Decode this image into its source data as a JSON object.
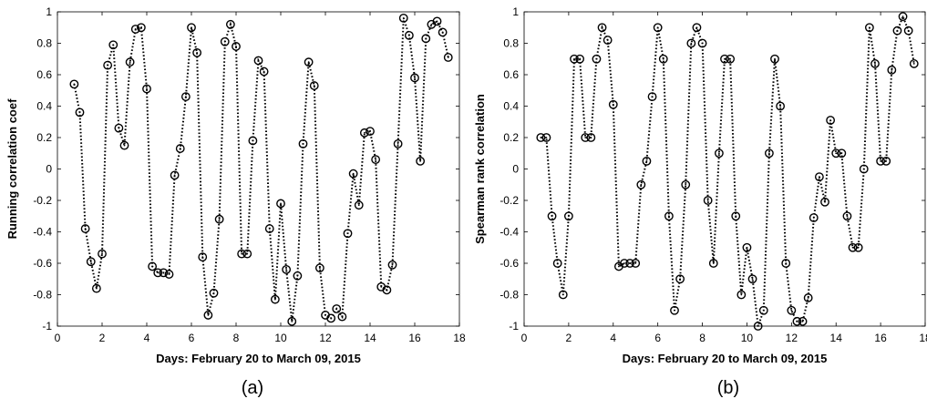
{
  "chart_data": [
    {
      "type": "line",
      "panel_label": "(a)",
      "ylabel": "Running correlation coef",
      "xlabel": "Days: February 20 to March 09, 2015",
      "xlim": [
        0,
        18
      ],
      "ylim": [
        -1,
        1
      ],
      "xticks": [
        "0",
        "2",
        "4",
        "6",
        "8",
        "10",
        "12",
        "14",
        "16",
        "18"
      ],
      "yticks": [
        "1",
        "0.8",
        "0.6",
        "0.4",
        "0.2",
        "0",
        "-0.2",
        "-0.4",
        "-0.6",
        "-0.8",
        "-1"
      ],
      "grid": false,
      "line_style": "dotted",
      "marker": "circle",
      "series": [
        {
          "x": [
            0.75,
            1.0,
            1.25,
            1.5,
            1.75,
            2.0,
            2.25,
            2.5,
            2.75,
            3.0,
            3.25,
            3.5,
            3.75,
            4.0,
            4.25,
            4.5,
            4.75,
            5.0,
            5.25,
            5.5,
            5.75,
            6.0,
            6.25,
            6.5,
            6.75,
            7.0,
            7.25,
            7.5,
            7.75,
            8.0,
            8.25,
            8.5,
            8.75,
            9.0,
            9.25,
            9.5,
            9.75,
            10.0,
            10.25,
            10.5,
            10.75,
            11.0,
            11.25,
            11.5,
            11.75,
            12.0,
            12.25,
            12.5,
            12.75,
            13.0,
            13.25,
            13.5,
            13.75,
            14.0,
            14.25,
            14.5,
            14.75,
            15.0,
            15.25,
            15.5,
            15.75,
            16.0,
            16.25,
            16.5,
            16.75,
            17.0,
            17.25,
            17.5
          ],
          "y": [
            0.54,
            0.36,
            -0.38,
            -0.59,
            -0.76,
            -0.54,
            0.66,
            0.79,
            0.26,
            0.15,
            0.68,
            0.89,
            0.9,
            0.51,
            -0.62,
            -0.66,
            -0.66,
            -0.67,
            -0.04,
            0.13,
            0.46,
            0.9,
            0.74,
            -0.56,
            -0.93,
            -0.79,
            -0.32,
            0.81,
            0.92,
            0.78,
            -0.54,
            -0.54,
            0.18,
            0.69,
            0.62,
            -0.38,
            -0.83,
            -0.22,
            -0.64,
            -0.97,
            -0.68,
            0.16,
            0.68,
            0.53,
            -0.63,
            -0.93,
            -0.95,
            -0.89,
            -0.94,
            -0.41,
            -0.03,
            -0.23,
            0.23,
            0.24,
            0.06,
            -0.75,
            -0.77,
            -0.61,
            0.16,
            0.96,
            0.85,
            0.58,
            0.05,
            0.83,
            0.92,
            0.94,
            0.87,
            0.71
          ]
        }
      ]
    },
    {
      "type": "line",
      "panel_label": "(b)",
      "ylabel": "Spearman rank correlation",
      "xlabel": "Days: February 20 to March 09, 2015",
      "xlim": [
        0,
        18
      ],
      "ylim": [
        -1,
        1
      ],
      "xticks": [
        "0",
        "2",
        "4",
        "6",
        "8",
        "10",
        "12",
        "14",
        "16",
        "18"
      ],
      "yticks": [
        "1",
        "0.8",
        "0.6",
        "0.4",
        "0.2",
        "0",
        "-0.2",
        "-0.4",
        "-0.6",
        "-0.8",
        "-1"
      ],
      "grid": false,
      "line_style": "dotted",
      "marker": "circle",
      "series": [
        {
          "x": [
            0.75,
            1.0,
            1.25,
            1.5,
            1.75,
            2.0,
            2.25,
            2.5,
            2.75,
            3.0,
            3.25,
            3.5,
            3.75,
            4.0,
            4.25,
            4.5,
            4.75,
            5.0,
            5.25,
            5.5,
            5.75,
            6.0,
            6.25,
            6.5,
            6.75,
            7.0,
            7.25,
            7.5,
            7.75,
            8.0,
            8.25,
            8.5,
            8.75,
            9.0,
            9.25,
            9.5,
            9.75,
            10.0,
            10.25,
            10.5,
            10.75,
            11.0,
            11.25,
            11.5,
            11.75,
            12.0,
            12.25,
            12.5,
            12.75,
            13.0,
            13.25,
            13.5,
            13.75,
            14.0,
            14.25,
            14.5,
            14.75,
            15.0,
            15.25,
            15.5,
            15.75,
            16.0,
            16.25,
            16.5,
            16.75,
            17.0,
            17.25,
            17.5
          ],
          "y": [
            0.2,
            0.2,
            -0.3,
            -0.6,
            -0.8,
            -0.3,
            0.7,
            0.7,
            0.2,
            0.2,
            0.7,
            0.9,
            0.82,
            0.41,
            -0.62,
            -0.6,
            -0.6,
            -0.6,
            -0.1,
            0.05,
            0.46,
            0.9,
            0.7,
            -0.3,
            -0.9,
            -0.7,
            -0.1,
            0.8,
            0.9,
            0.8,
            -0.2,
            -0.6,
            0.1,
            0.7,
            0.7,
            -0.3,
            -0.8,
            -0.5,
            -0.7,
            -1.0,
            -0.9,
            0.1,
            0.7,
            0.4,
            -0.6,
            -0.9,
            -0.97,
            -0.97,
            -0.82,
            -0.31,
            -0.05,
            -0.21,
            0.31,
            0.1,
            0.1,
            -0.3,
            -0.5,
            -0.5,
            0.0,
            0.9,
            0.67,
            0.05,
            0.05,
            0.63,
            0.88,
            0.97,
            0.88,
            0.67
          ]
        }
      ]
    }
  ]
}
